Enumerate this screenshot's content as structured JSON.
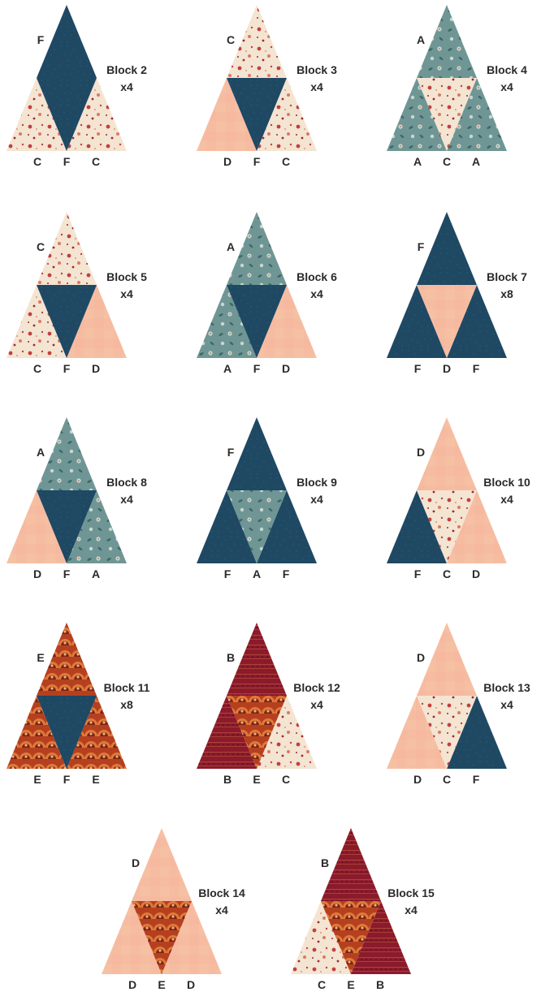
{
  "fabrics": {
    "A": {
      "name": "A",
      "pattern": "teal-floral",
      "base": "#6f9695",
      "accent1": "#c8d8cf",
      "accent2": "#d0624a",
      "accent3": "#3d6966"
    },
    "B": {
      "name": "B",
      "pattern": "wine-stripe",
      "base": "#8b1a2b",
      "accent1": "#b44b3c",
      "accent2": "#6e1220",
      "accent3": "#c06b45"
    },
    "C": {
      "name": "C",
      "pattern": "cream-floral",
      "base": "#f4e4d2",
      "accent1": "#c1413f",
      "accent2": "#d97a63",
      "accent3": "#9b2a2e"
    },
    "D": {
      "name": "D",
      "pattern": "peach-solid",
      "base": "#f6bca2",
      "accent1": "#f9caa9",
      "accent2": "#f2ad92",
      "accent3": "#f4b89a"
    },
    "E": {
      "name": "E",
      "pattern": "orange-scallop",
      "base": "#b5401f",
      "accent1": "#e07a3a",
      "accent2": "#7a2415",
      "accent3": "#f0b07a"
    },
    "F": {
      "name": "F",
      "pattern": "navy-dot",
      "base": "#1f4863",
      "accent1": "#2a5877",
      "accent2": "#183a52",
      "accent3": "#2e6080"
    }
  },
  "blocks": [
    {
      "name": "Block 2",
      "qty": "x4",
      "top": "F",
      "mid": "F",
      "left": "C",
      "right": "C",
      "bottom_labels": [
        "C",
        "F",
        "C"
      ],
      "top_label": "F"
    },
    {
      "name": "Block 3",
      "qty": "x4",
      "top": "C",
      "mid": "F",
      "left": "D",
      "right": "C",
      "bottom_labels": [
        "D",
        "F",
        "C"
      ],
      "top_label": "C"
    },
    {
      "name": "Block 4",
      "qty": "x4",
      "top": "A",
      "mid": "C",
      "left": "A",
      "right": "A",
      "bottom_labels": [
        "A",
        "C",
        "A"
      ],
      "top_label": "A"
    },
    {
      "name": "Block 5",
      "qty": "x4",
      "top": "C",
      "mid": "F",
      "left": "C",
      "right": "D",
      "bottom_labels": [
        "C",
        "F",
        "D"
      ],
      "top_label": "C"
    },
    {
      "name": "Block 6",
      "qty": "x4",
      "top": "A",
      "mid": "F",
      "left": "A",
      "right": "D",
      "bottom_labels": [
        "A",
        "F",
        "D"
      ],
      "top_label": "A"
    },
    {
      "name": "Block 7",
      "qty": "x8",
      "top": "F",
      "mid": "D",
      "left": "F",
      "right": "F",
      "bottom_labels": [
        "F",
        "D",
        "F"
      ],
      "top_label": "F"
    },
    {
      "name": "Block 8",
      "qty": "x4",
      "top": "A",
      "mid": "F",
      "left": "D",
      "right": "A",
      "bottom_labels": [
        "D",
        "F",
        "A"
      ],
      "top_label": "A"
    },
    {
      "name": "Block 9",
      "qty": "x4",
      "top": "F",
      "mid": "A",
      "left": "F",
      "right": "F",
      "bottom_labels": [
        "F",
        "A",
        "F"
      ],
      "top_label": "F"
    },
    {
      "name": "Block 10",
      "qty": "x4",
      "top": "D",
      "mid": "C",
      "left": "F",
      "right": "D",
      "bottom_labels": [
        "F",
        "C",
        "D"
      ],
      "top_label": "D"
    },
    {
      "name": "Block 11",
      "qty": "x8",
      "top": "E",
      "mid": "F",
      "left": "E",
      "right": "E",
      "bottom_labels": [
        "E",
        "F",
        "E"
      ],
      "top_label": "E"
    },
    {
      "name": "Block 12",
      "qty": "x4",
      "top": "B",
      "mid": "E",
      "left": "B",
      "right": "C",
      "bottom_labels": [
        "B",
        "E",
        "C"
      ],
      "top_label": "B"
    },
    {
      "name": "Block 13",
      "qty": "x4",
      "top": "D",
      "mid": "C",
      "left": "D",
      "right": "F",
      "bottom_labels": [
        "D",
        "C",
        "F"
      ],
      "top_label": "D"
    },
    {
      "name": "Block 14",
      "qty": "x4",
      "top": "D",
      "mid": "E",
      "left": "D",
      "right": "D",
      "bottom_labels": [
        "D",
        "E",
        "D"
      ],
      "top_label": "D"
    },
    {
      "name": "Block 15",
      "qty": "x4",
      "top": "B",
      "mid": "E",
      "left": "C",
      "right": "B",
      "bottom_labels": [
        "C",
        "E",
        "B"
      ],
      "top_label": "B"
    }
  ]
}
